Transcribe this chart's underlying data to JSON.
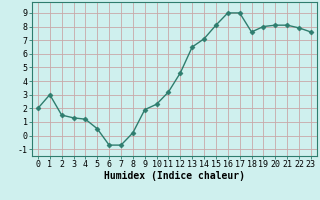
{
  "x": [
    0,
    1,
    2,
    3,
    4,
    5,
    6,
    7,
    8,
    9,
    10,
    11,
    12,
    13,
    14,
    15,
    16,
    17,
    18,
    19,
    20,
    21,
    22,
    23
  ],
  "y": [
    2,
    3,
    1.5,
    1.3,
    1.2,
    0.5,
    -0.7,
    -0.7,
    0.2,
    1.9,
    2.3,
    3.2,
    4.6,
    6.5,
    7.1,
    8.1,
    9.0,
    9.0,
    7.6,
    8.0,
    8.1,
    8.1,
    7.9,
    7.6
  ],
  "line_color": "#2e7d6e",
  "marker": "D",
  "markersize": 2.5,
  "linewidth": 1.0,
  "bg_color": "#cff0ee",
  "grid_color": "#c8a8a8",
  "xlabel": "Humidex (Indice chaleur)",
  "ylim": [
    -1.5,
    9.8
  ],
  "xlim": [
    -0.5,
    23.5
  ],
  "yticks": [
    -1,
    0,
    1,
    2,
    3,
    4,
    5,
    6,
    7,
    8,
    9
  ],
  "xticks": [
    0,
    1,
    2,
    3,
    4,
    5,
    6,
    7,
    8,
    9,
    10,
    11,
    12,
    13,
    14,
    15,
    16,
    17,
    18,
    19,
    20,
    21,
    22,
    23
  ],
  "xlabel_fontsize": 7,
  "tick_fontsize": 6,
  "ylabel_fontsize": 6
}
